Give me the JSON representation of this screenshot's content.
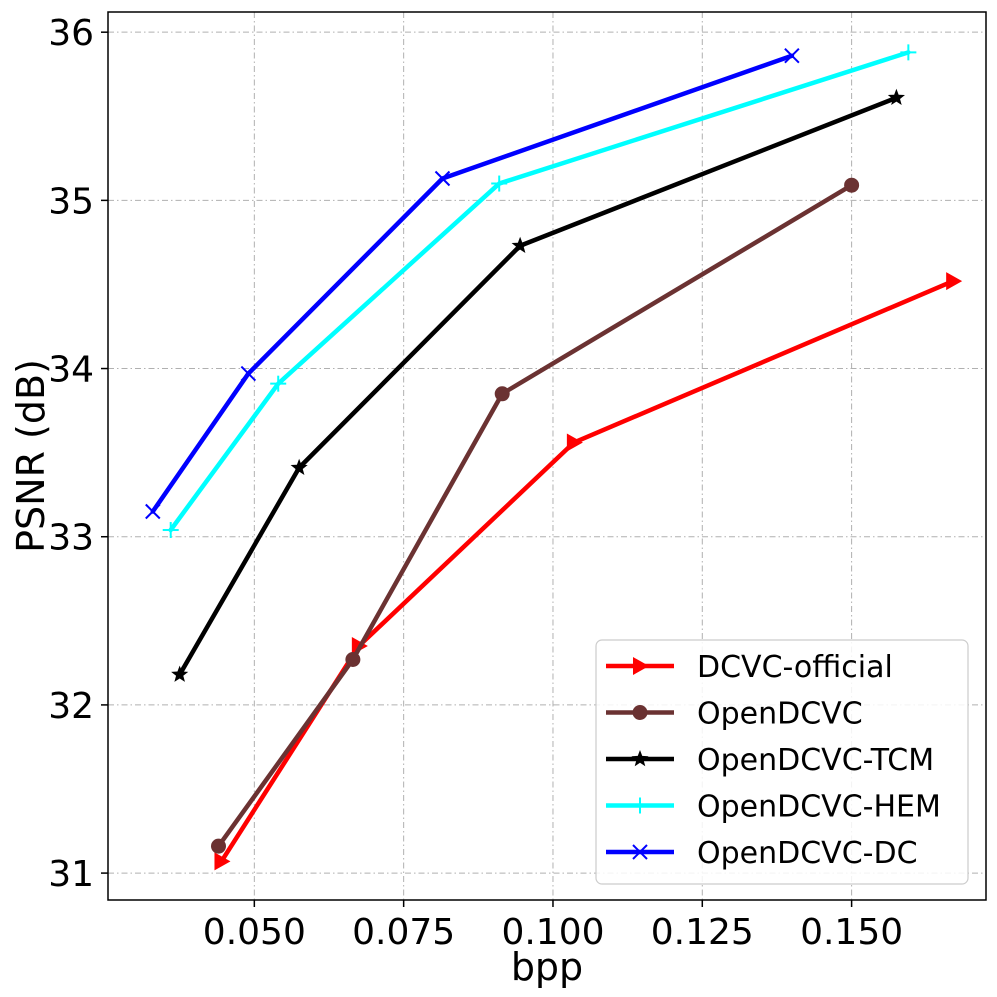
{
  "chart_data": {
    "type": "line",
    "title": "",
    "xlabel": "bpp",
    "ylabel": "PSNR (dB)",
    "xlim": [
      0.0255,
      0.1725
    ],
    "ylim": [
      30.84,
      36.12
    ],
    "xticks": [
      0.05,
      0.075,
      0.1,
      0.125,
      0.15
    ],
    "xtick_labels": [
      "0.050",
      "0.075",
      "0.100",
      "0.125",
      "0.150"
    ],
    "yticks": [
      31,
      32,
      33,
      34,
      35,
      36
    ],
    "ytick_labels": [
      "31",
      "32",
      "33",
      "34",
      "35",
      "36"
    ],
    "grid": true,
    "legend_position": "bottom-right",
    "series": [
      {
        "name": "DCVC-official",
        "color": "#ff0000",
        "marker": "triangle-right",
        "points": [
          [
            0.0445,
            31.07
          ],
          [
            0.0675,
            32.35
          ],
          [
            0.1035,
            33.56
          ],
          [
            0.167,
            34.52
          ]
        ]
      },
      {
        "name": "OpenDCVC",
        "color": "#6b3232",
        "marker": "circle",
        "points": [
          [
            0.044,
            31.16
          ],
          [
            0.0665,
            32.27
          ],
          [
            0.0915,
            33.85
          ],
          [
            0.15,
            35.09
          ]
        ]
      },
      {
        "name": "OpenDCVC-TCM",
        "color": "#000000",
        "marker": "star",
        "points": [
          [
            0.0375,
            32.18
          ],
          [
            0.0575,
            33.41
          ],
          [
            0.0945,
            34.73
          ],
          [
            0.1575,
            35.61
          ]
        ]
      },
      {
        "name": "OpenDCVC-HEM",
        "color": "#00ffff",
        "marker": "plus",
        "points": [
          [
            0.036,
            33.04
          ],
          [
            0.054,
            33.91
          ],
          [
            0.091,
            35.1
          ],
          [
            0.1595,
            35.88
          ]
        ]
      },
      {
        "name": "OpenDCVC-DC",
        "color": "#0000ff",
        "marker": "x",
        "points": [
          [
            0.033,
            33.15
          ],
          [
            0.049,
            33.97
          ],
          [
            0.0815,
            35.13
          ],
          [
            0.14,
            35.86
          ]
        ]
      }
    ]
  }
}
